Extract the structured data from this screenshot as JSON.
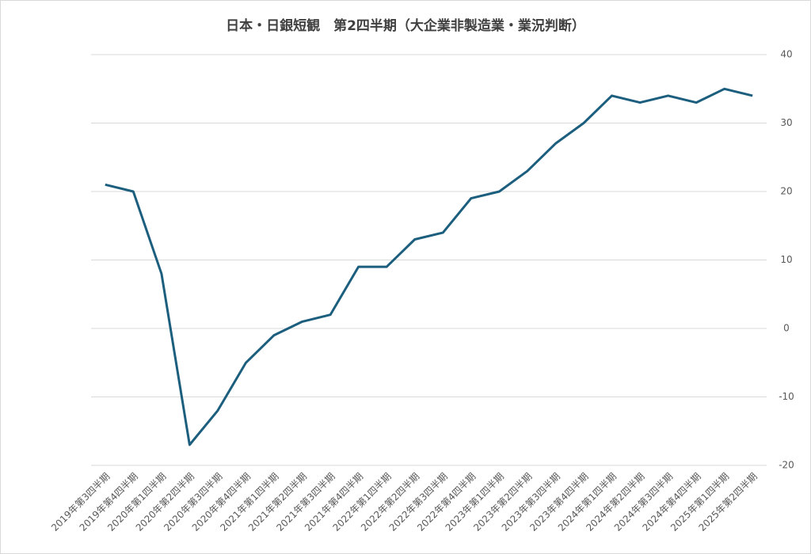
{
  "chart_data": {
    "type": "line",
    "title": "日本・日銀短観　第2四半期（大企業非製造業・業況判断）",
    "categories": [
      "2019年第3四半期",
      "2019年第4四半期",
      "2020年第1四半期",
      "2020年第2四半期",
      "2020年第3四半期",
      "2020年第4四半期",
      "2021年第1四半期",
      "2021年第2四半期",
      "2021年第3四半期",
      "2021年第4四半期",
      "2022年第1四半期",
      "2022年第2四半期",
      "2022年第3四半期",
      "2022年第4四半期",
      "2023年第1四半期",
      "2023年第2四半期",
      "2023年第3四半期",
      "2023年第4四半期",
      "2024年第1四半期",
      "2024年第2四半期",
      "2024年第3四半期",
      "2024年第4四半期",
      "2025年第1四半期",
      "2025年第2四半期"
    ],
    "values": [
      21,
      20,
      8,
      -17,
      -12,
      -5,
      -1,
      1,
      2,
      9,
      9,
      13,
      14,
      19,
      20,
      23,
      27,
      30,
      34,
      33,
      34,
      33,
      35,
      34
    ],
    "color": "#1c5e7d",
    "ylim": [
      -20,
      40
    ],
    "yticks": [
      -20,
      -10,
      0,
      10,
      20,
      30,
      40
    ],
    "grid": true,
    "y_axis_side": "right"
  }
}
